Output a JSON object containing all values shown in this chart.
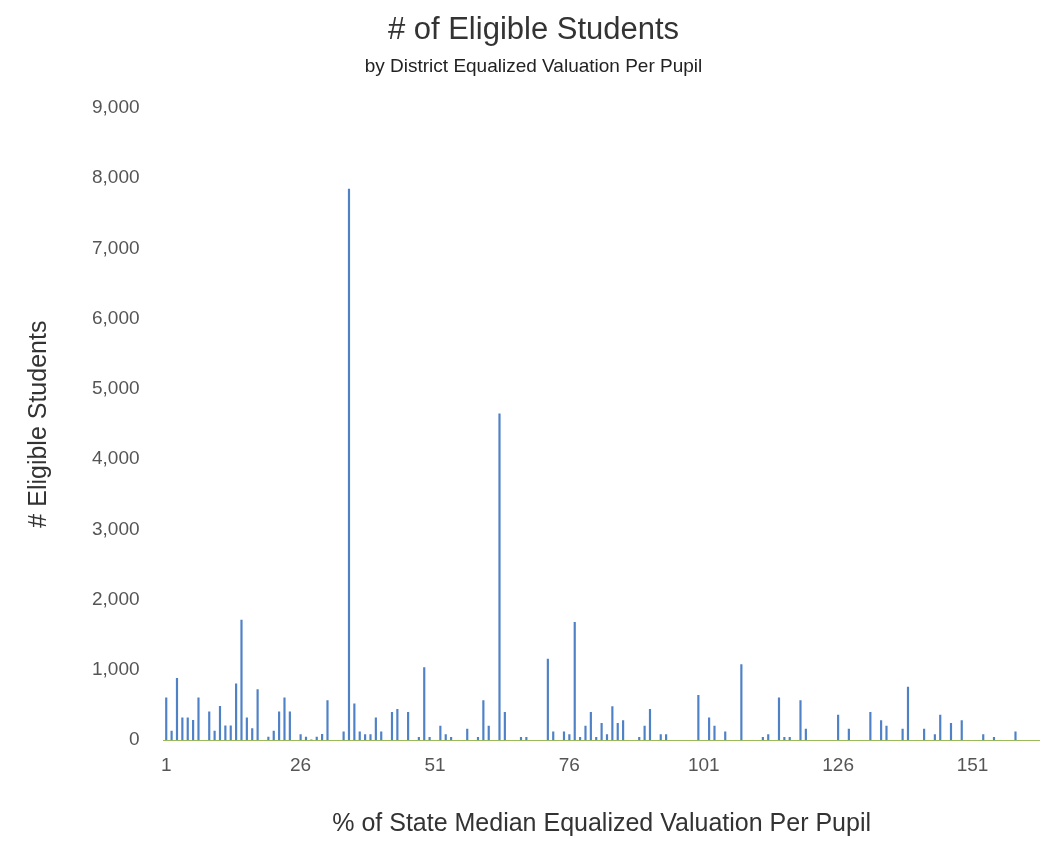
{
  "chart_data": {
    "type": "bar",
    "title": "# of Eligible Students",
    "subtitle": "by District Equalized Valuation Per Pupil",
    "xlabel": "% of State Median Equalized Valuation Per Pupil",
    "ylabel": "# Eligible Students",
    "categories": [
      "1",
      null,
      null,
      null,
      null,
      null,
      null,
      null,
      null,
      null,
      null,
      null,
      null,
      null,
      null,
      null,
      null,
      null,
      null,
      null,
      null,
      null,
      null,
      null,
      null,
      "26",
      null,
      null,
      null,
      null,
      null,
      null,
      null,
      null,
      null,
      null,
      null,
      null,
      null,
      null,
      null,
      null,
      null,
      null,
      null,
      null,
      null,
      null,
      null,
      null,
      "51",
      null,
      null,
      null,
      null,
      null,
      null,
      null,
      null,
      null,
      null,
      null,
      null,
      null,
      null,
      null,
      null,
      null,
      null,
      null,
      null,
      null,
      null,
      null,
      null,
      "76",
      null,
      null,
      null,
      null,
      null,
      null,
      null,
      null,
      null,
      null,
      null,
      null,
      null,
      null,
      null,
      null,
      null,
      null,
      null,
      null,
      null,
      null,
      null,
      null,
      "101",
      null,
      null,
      null,
      null,
      null,
      null,
      null,
      null,
      null,
      null,
      null,
      null,
      null,
      null,
      null,
      null,
      null,
      null,
      null,
      null,
      null,
      null,
      null,
      null,
      "126",
      null,
      null,
      null,
      null,
      null,
      null,
      null,
      null,
      null,
      null,
      null,
      null,
      null,
      null,
      null,
      null,
      null,
      null,
      null,
      null,
      null,
      null,
      null,
      null,
      "151",
      null,
      null,
      null,
      null,
      null,
      null,
      null,
      null,
      null,
      null,
      null,
      null
    ],
    "values": [
      607,
      134,
      886,
      323,
      323,
      289,
      607,
      0,
      408,
      134,
      488,
      209,
      209,
      806,
      1716,
      323,
      169,
      726,
      0,
      50,
      134,
      408,
      607,
      408,
      0,
      85,
      50,
      10,
      50,
      90,
      567,
      0,
      0,
      124,
      7850,
      522,
      124,
      85,
      85,
      323,
      124,
      0,
      403,
      443,
      0,
      403,
      0,
      45,
      1040,
      45,
      0,
      204,
      85,
      45,
      0,
      0,
      164,
      0,
      45,
      567,
      204,
      0,
      4650,
      403,
      0,
      0,
      45,
      45,
      0,
      0,
      0,
      1159,
      124,
      0,
      124,
      85,
      1682,
      45,
      204,
      403,
      45,
      244,
      85,
      483,
      244,
      284,
      0,
      0,
      45,
      204,
      443,
      0,
      85,
      85,
      0,
      0,
      0,
      0,
      0,
      642,
      0,
      323,
      204,
      0,
      124,
      0,
      0,
      1080,
      0,
      0,
      0,
      45,
      85,
      0,
      607,
      45,
      45,
      0,
      567,
      164,
      0,
      0,
      0,
      0,
      0,
      363,
      0,
      164,
      0,
      0,
      0,
      403,
      0,
      284,
      204,
      0,
      0,
      164,
      761,
      0,
      0,
      164,
      0,
      85,
      363,
      0,
      244,
      0,
      284,
      0,
      0,
      0,
      85,
      0,
      45,
      0,
      0,
      0,
      124,
      0,
      0,
      0,
      0
    ],
    "color": "#4f81c7",
    "ylim": [
      0,
      9000
    ],
    "yticks": [
      0,
      {
        "value": 1000,
        "label": "1,000"
      },
      {
        "value": 2000,
        "label": "2,000"
      },
      {
        "value": 3000,
        "label": "3,000"
      },
      {
        "value": 4000,
        "label": "4,000"
      },
      {
        "value": 5000,
        "label": "5,000"
      },
      {
        "value": 6000,
        "label": "6,000"
      },
      {
        "value": 7000,
        "label": "7,000"
      },
      {
        "value": 8000,
        "label": "8,000"
      },
      {
        "value": 9000,
        "label": "9,000"
      }
    ],
    "grid": false,
    "legend": false
  }
}
